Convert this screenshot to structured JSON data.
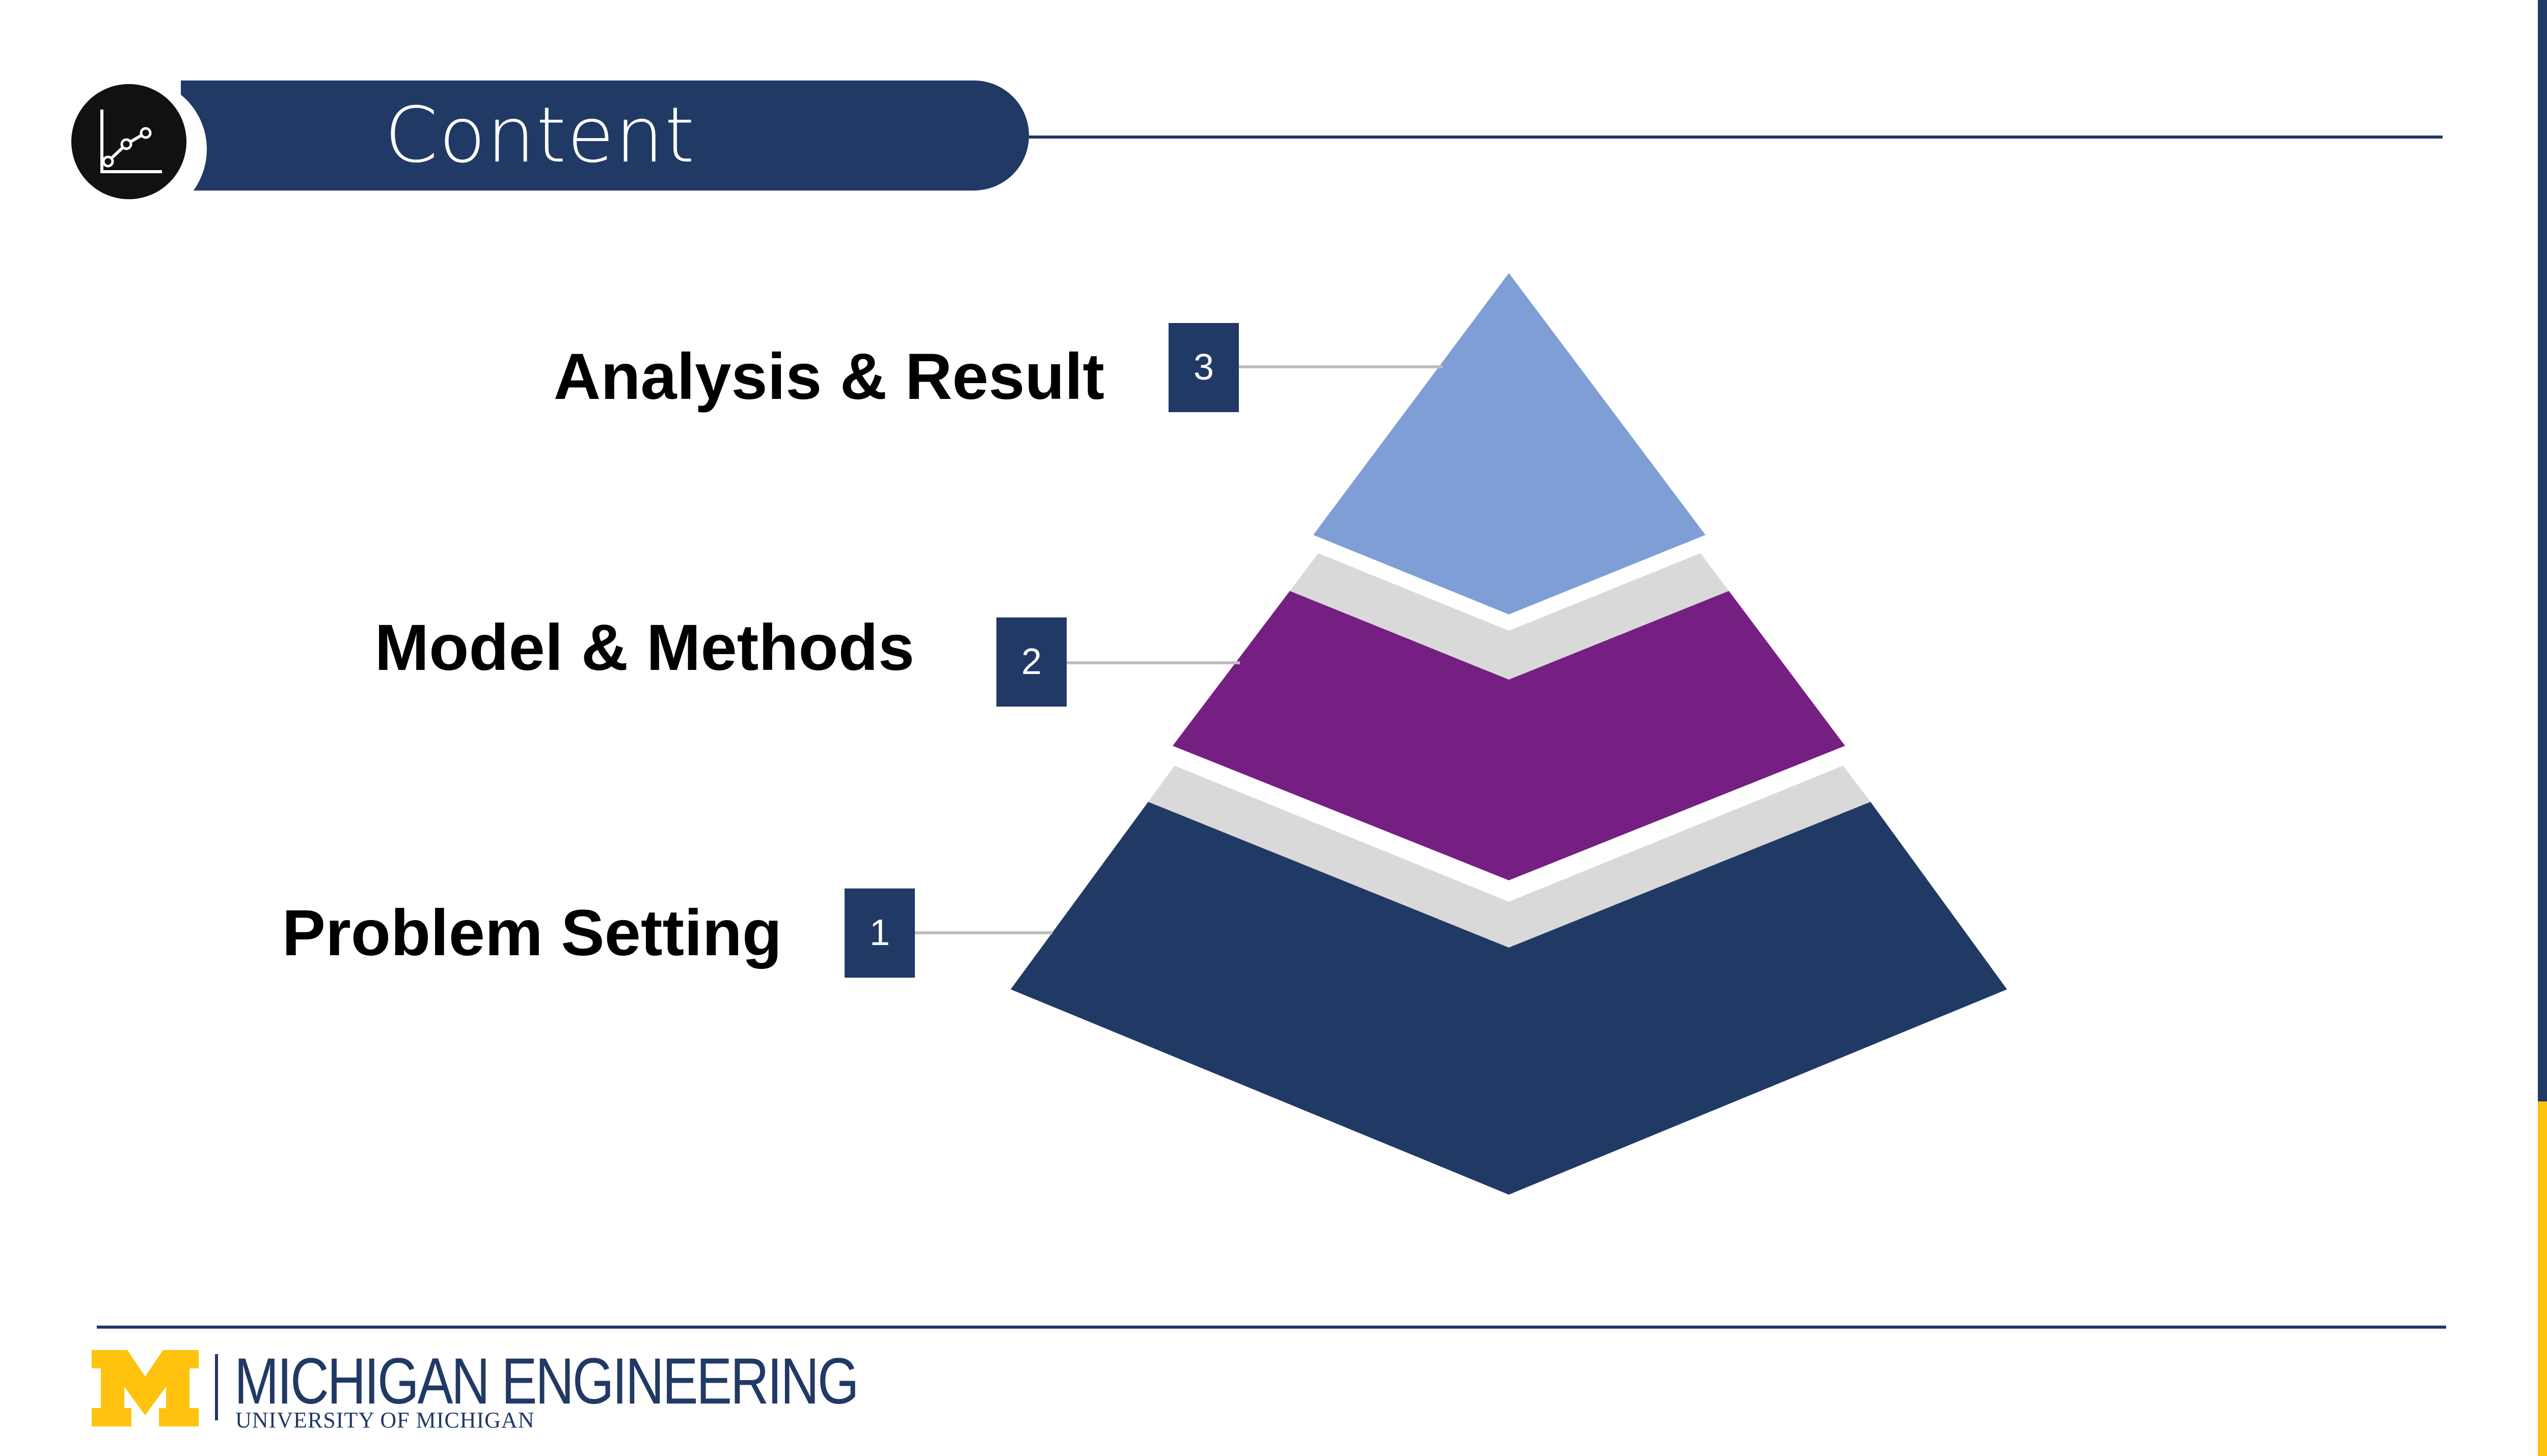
{
  "header": {
    "title": "Content",
    "icon": "line-chart-icon"
  },
  "pyramid": {
    "levels": [
      {
        "number": "1",
        "label": "Problem Setting",
        "color": "#213965"
      },
      {
        "number": "2",
        "label": "Model & Methods",
        "color": "#751F82"
      },
      {
        "number": "3",
        "label": "Analysis & Result",
        "color": "#7F9ED6"
      }
    ],
    "separator_color": "#D9D9D9"
  },
  "footer": {
    "logo": "block-m-logo",
    "brand_name": "MICHIGAN ENGINEERING",
    "brand_sub": "UNIVERSITY OF MICHIGAN"
  },
  "colors": {
    "navy": "#213965",
    "maize": "#FFC20E"
  }
}
